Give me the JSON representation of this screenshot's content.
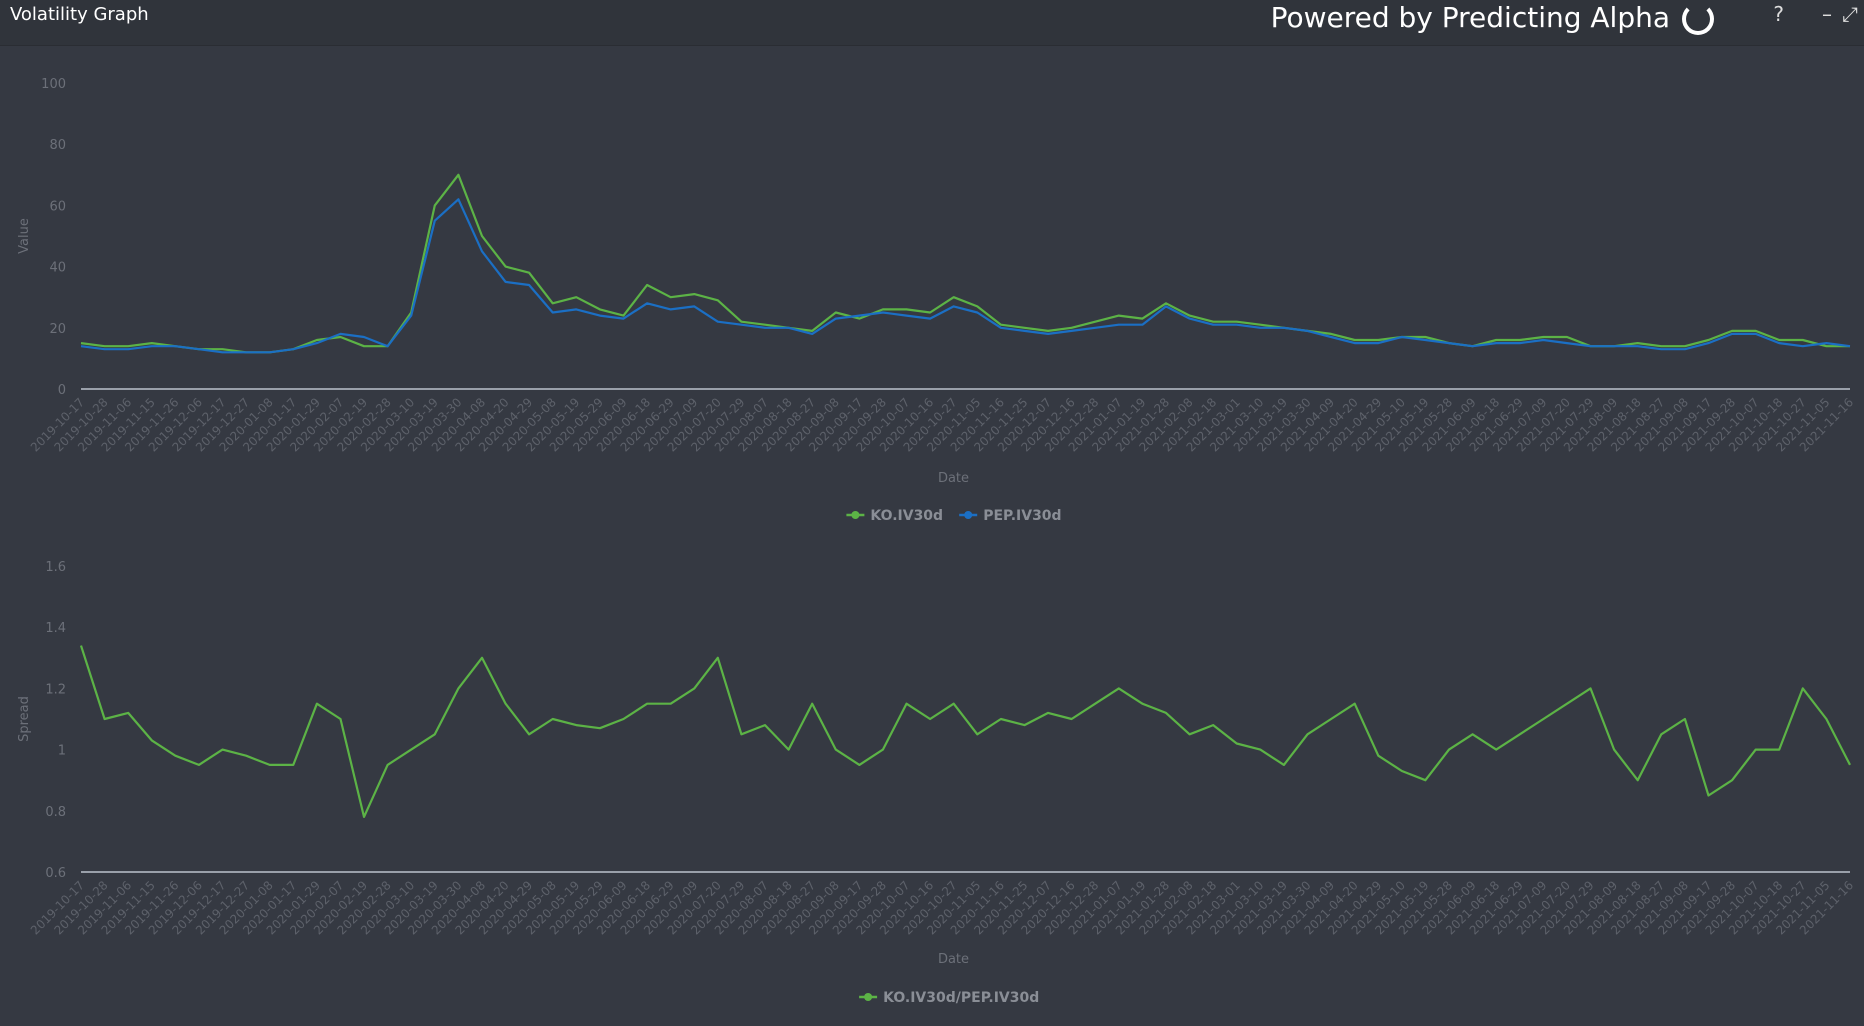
{
  "header": {
    "title": "Volatility Graph",
    "powered_by": "Powered by Predicting Alpha",
    "help": "?",
    "minimize": "–",
    "expand": "⤢"
  },
  "colors": {
    "ko": "#5cb346",
    "pep": "#1b6fc4",
    "spread": "#5cb346",
    "axis_text": "#6c7079",
    "baseline": "#9aa0aa"
  },
  "chart_data": [
    {
      "type": "line",
      "title": "",
      "xlabel": "Date",
      "ylabel": "Value",
      "ylim": [
        0,
        100
      ],
      "yticks": [
        0,
        20,
        40,
        60,
        80,
        100
      ],
      "legend": "bottom-center",
      "x": [
        "2019-10-17",
        "2019-10-28",
        "2019-11-06",
        "2019-11-15",
        "2019-11-26",
        "2019-12-06",
        "2019-12-17",
        "2019-12-27",
        "2020-01-08",
        "2020-01-17",
        "2020-01-29",
        "2020-02-07",
        "2020-02-19",
        "2020-02-28",
        "2020-03-10",
        "2020-03-19",
        "2020-03-30",
        "2020-04-08",
        "2020-04-20",
        "2020-04-29",
        "2020-05-08",
        "2020-05-19",
        "2020-05-29",
        "2020-06-09",
        "2020-06-18",
        "2020-06-29",
        "2020-07-09",
        "2020-07-20",
        "2020-07-29",
        "2020-08-07",
        "2020-08-18",
        "2020-08-27",
        "2020-09-08",
        "2020-09-17",
        "2020-09-28",
        "2020-10-07",
        "2020-10-16",
        "2020-10-27",
        "2020-11-05",
        "2020-11-16",
        "2020-11-25",
        "2020-12-07",
        "2020-12-16",
        "2020-12-28",
        "2021-01-07",
        "2021-01-19",
        "2021-01-28",
        "2021-02-08",
        "2021-02-18",
        "2021-03-01",
        "2021-03-10",
        "2021-03-19",
        "2021-03-30",
        "2021-04-09",
        "2021-04-20",
        "2021-04-29",
        "2021-05-10",
        "2021-05-19",
        "2021-05-28",
        "2021-06-09",
        "2021-06-18",
        "2021-06-29",
        "2021-07-09",
        "2021-07-20",
        "2021-07-29",
        "2021-08-09",
        "2021-08-18",
        "2021-08-27",
        "2021-09-08",
        "2021-09-17",
        "2021-09-28",
        "2021-10-07",
        "2021-10-18",
        "2021-10-27",
        "2021-11-05",
        "2021-11-16"
      ],
      "series": [
        {
          "name": "KO.IV30d",
          "values": [
            15,
            14,
            14,
            15,
            14,
            13,
            13,
            12,
            12,
            13,
            16,
            17,
            14,
            14,
            25,
            60,
            70,
            50,
            40,
            38,
            28,
            30,
            26,
            24,
            34,
            30,
            31,
            29,
            22,
            21,
            20,
            19,
            25,
            23,
            26,
            26,
            25,
            30,
            27,
            21,
            20,
            19,
            20,
            22,
            24,
            23,
            28,
            24,
            22,
            22,
            21,
            20,
            19,
            18,
            16,
            16,
            17,
            17,
            15,
            14,
            16,
            16,
            17,
            17,
            14,
            14,
            15,
            14,
            14,
            16,
            19,
            19,
            16,
            16,
            14,
            14
          ]
        },
        {
          "name": "PEP.IV30d",
          "values": [
            14,
            13,
            13,
            14,
            14,
            13,
            12,
            12,
            12,
            13,
            15,
            18,
            17,
            14,
            24,
            55,
            62,
            45,
            35,
            34,
            25,
            26,
            24,
            23,
            28,
            26,
            27,
            22,
            21,
            20,
            20,
            18,
            23,
            24,
            25,
            24,
            23,
            27,
            25,
            20,
            19,
            18,
            19,
            20,
            21,
            21,
            27,
            23,
            21,
            21,
            20,
            20,
            19,
            17,
            15,
            15,
            17,
            16,
            15,
            14,
            15,
            15,
            16,
            15,
            14,
            14,
            14,
            13,
            13,
            15,
            18,
            18,
            15,
            14,
            15,
            14
          ]
        }
      ]
    },
    {
      "type": "line",
      "title": "",
      "xlabel": "Date",
      "ylabel": "Spread",
      "ylim": [
        0.6,
        1.6
      ],
      "yticks": [
        0.6,
        0.8,
        1,
        1.2,
        1.4,
        1.6
      ],
      "legend": "bottom-center",
      "series": [
        {
          "name": "KO.IV30d/PEP.IV30d",
          "values": [
            1.34,
            1.1,
            1.12,
            1.03,
            0.98,
            0.95,
            1.0,
            0.98,
            0.95,
            0.95,
            1.15,
            1.1,
            0.78,
            0.95,
            1.0,
            1.05,
            1.2,
            1.3,
            1.15,
            1.05,
            1.1,
            1.08,
            1.07,
            1.1,
            1.15,
            1.15,
            1.2,
            1.3,
            1.05,
            1.08,
            1.0,
            1.15,
            1.0,
            0.95,
            1.0,
            1.15,
            1.1,
            1.15,
            1.05,
            1.1,
            1.08,
            1.12,
            1.1,
            1.15,
            1.2,
            1.15,
            1.12,
            1.05,
            1.08,
            1.02,
            1.0,
            0.95,
            1.05,
            1.1,
            1.15,
            0.98,
            0.93,
            0.9,
            1.0,
            1.05,
            1.0,
            1.05,
            1.1,
            1.15,
            1.2,
            1.0,
            0.9,
            1.05,
            1.1,
            0.85,
            0.9,
            1.0,
            1.0,
            1.2,
            1.1,
            0.95
          ]
        }
      ]
    }
  ]
}
